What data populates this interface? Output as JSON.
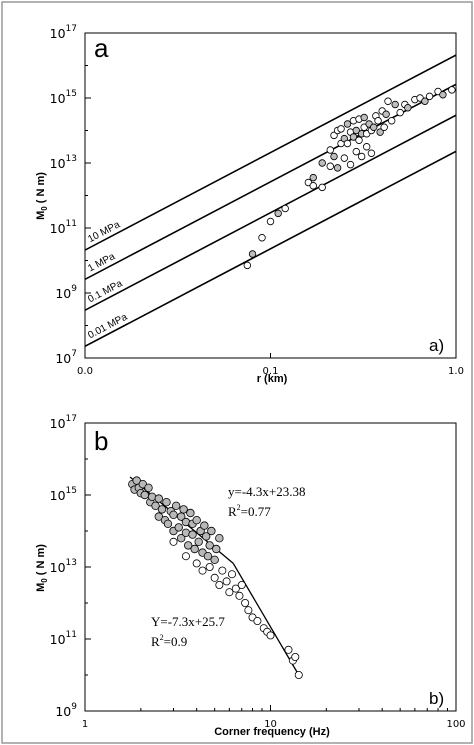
{
  "chart_data": [
    {
      "type": "line",
      "panel_letter": "a",
      "corner_letter": "a)",
      "xlabel": "r (km)",
      "ylabel": "M0 ( N m)",
      "xlim": [
        0.0,
        1.0
      ],
      "x_tick_labels": [
        "0.0",
        "0.1",
        "1.0"
      ],
      "ylim_log10": [
        7,
        17
      ],
      "y_ticks": [
        {
          "base": "10",
          "exp": "7"
        },
        {
          "base": "10",
          "exp": "9"
        },
        {
          "base": "10",
          "exp": "11"
        },
        {
          "base": "10",
          "exp": "13"
        },
        {
          "base": "10",
          "exp": "15"
        },
        {
          "base": "10",
          "exp": "17"
        }
      ],
      "series": [
        {
          "name": "10 MPa",
          "x": [
            0.001,
            1.0
          ],
          "log10_y": [
            10.32,
            16.32
          ]
        },
        {
          "name": "1 MPa",
          "x": [
            0.001,
            1.0
          ],
          "log10_y": [
            9.42,
            15.42
          ]
        },
        {
          "name": "0.1 MPa",
          "x": [
            0.001,
            1.0
          ],
          "log10_y": [
            8.47,
            14.47
          ]
        },
        {
          "name": "0.01 MPa",
          "x": [
            0.001,
            1.0
          ],
          "log10_y": [
            7.36,
            13.36
          ]
        }
      ],
      "scatter": {
        "x": [
          0.075,
          0.08,
          0.09,
          0.1,
          0.11,
          0.12,
          0.16,
          0.17,
          0.17,
          0.19,
          0.19,
          0.21,
          0.21,
          0.22,
          0.22,
          0.23,
          0.23,
          0.24,
          0.24,
          0.25,
          0.25,
          0.26,
          0.26,
          0.27,
          0.27,
          0.28,
          0.28,
          0.29,
          0.29,
          0.3,
          0.3,
          0.31,
          0.31,
          0.32,
          0.32,
          0.33,
          0.33,
          0.34,
          0.35,
          0.35,
          0.36,
          0.37,
          0.38,
          0.39,
          0.4,
          0.41,
          0.42,
          0.43,
          0.45,
          0.47,
          0.5,
          0.53,
          0.55,
          0.6,
          0.64,
          0.68,
          0.72,
          0.8,
          0.85,
          0.95
        ],
        "log10_y": [
          9.85,
          10.2,
          10.7,
          11.2,
          11.45,
          11.6,
          12.4,
          12.55,
          12.3,
          12.25,
          13.0,
          13.4,
          12.9,
          13.2,
          13.85,
          14.0,
          12.85,
          13.6,
          14.05,
          13.75,
          13.15,
          13.6,
          14.2,
          13.95,
          12.95,
          13.8,
          14.3,
          13.35,
          14.0,
          13.7,
          14.35,
          13.9,
          13.2,
          14.1,
          14.4,
          13.9,
          13.5,
          14.2,
          13.3,
          14.0,
          14.1,
          14.45,
          14.3,
          13.95,
          14.6,
          14.1,
          14.5,
          14.9,
          14.3,
          14.8,
          14.55,
          14.8,
          14.7,
          14.95,
          15.0,
          14.9,
          15.05,
          15.2,
          15.1,
          15.25
        ]
      }
    },
    {
      "type": "scatter",
      "panel_letter": "b",
      "corner_letter": "b)",
      "xlabel": "Corner frequency (Hz)",
      "ylabel": "M0 ( N m)",
      "x_tick_labels": [
        "1",
        "10",
        "100"
      ],
      "xlim_log10": [
        0,
        2
      ],
      "ylim_log10": [
        9,
        17
      ],
      "y_ticks": [
        {
          "base": "10",
          "exp": "9"
        },
        {
          "base": "10",
          "exp": "11"
        },
        {
          "base": "10",
          "exp": "13"
        },
        {
          "base": "10",
          "exp": "15"
        },
        {
          "base": "10",
          "exp": "17"
        }
      ],
      "fits": [
        {
          "equation": "y=-4.3x+23.38",
          "r2": "R",
          "r2_exp": "2",
          "r2_val": "=0.77",
          "freq": [
            1.75,
            6.3
          ],
          "log10_y": [
            15.5,
            13.1
          ]
        },
        {
          "equation": "Y=-7.3x+25.7",
          "r2": "R",
          "r2_exp": "2",
          "r2_val": "=0.9",
          "freq": [
            6.3,
            14.2
          ],
          "log10_y": [
            13.1,
            10.0
          ]
        }
      ],
      "scatter_filled": {
        "freq": [
          1.8,
          1.85,
          1.9,
          1.95,
          2.0,
          2.05,
          2.1,
          2.2,
          2.25,
          2.3,
          2.4,
          2.5,
          2.5,
          2.6,
          2.7,
          2.75,
          2.8,
          2.9,
          3.0,
          3.0,
          3.1,
          3.2,
          3.3,
          3.3,
          3.4,
          3.5,
          3.5,
          3.6,
          3.7,
          3.8,
          3.8,
          3.9,
          4.0,
          4.1,
          4.2,
          4.3,
          4.4,
          4.5,
          4.6,
          4.7,
          4.8,
          5.0,
          5.1,
          5.3
        ],
        "log10_y": [
          15.3,
          15.15,
          15.4,
          15.2,
          15.05,
          15.3,
          15.0,
          15.2,
          14.8,
          14.95,
          14.7,
          14.9,
          14.4,
          14.6,
          14.3,
          14.8,
          14.2,
          14.55,
          14.0,
          14.45,
          14.7,
          14.1,
          13.8,
          14.4,
          14.6,
          13.95,
          14.25,
          13.6,
          14.5,
          13.9,
          14.2,
          13.5,
          14.3,
          13.7,
          14.0,
          13.4,
          14.15,
          13.85,
          13.3,
          13.6,
          14.0,
          13.2,
          13.5,
          13.8
        ]
      },
      "scatter_open": {
        "freq": [
          3.0,
          3.5,
          4.0,
          4.3,
          4.7,
          5.0,
          5.3,
          5.5,
          5.8,
          6.0,
          6.2,
          6.5,
          6.8,
          7.0,
          7.3,
          7.6,
          8.0,
          8.5,
          9.2,
          9.6,
          10.0,
          12.5,
          13.2,
          13.6,
          14.2
        ],
        "log10_y": [
          13.7,
          13.3,
          13.1,
          12.9,
          13.0,
          12.7,
          12.5,
          12.9,
          12.6,
          12.3,
          12.8,
          12.4,
          12.2,
          12.5,
          12.0,
          11.8,
          11.6,
          11.5,
          11.3,
          11.2,
          11.1,
          10.7,
          10.4,
          10.5,
          10.0
        ]
      }
    }
  ]
}
